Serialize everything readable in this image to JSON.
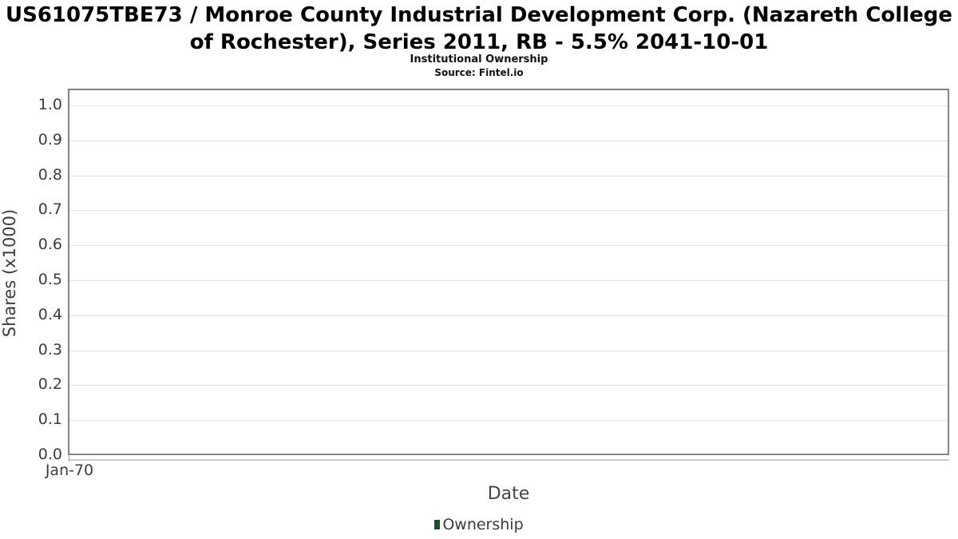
{
  "chart_data": {
    "type": "line",
    "title": "US61075TBE73 / Monroe County Industrial Development Corp. (Nazareth College of Rochester), Series 2011, RB - 5.5% 2041-10-01",
    "subtitle": "Institutional Ownership",
    "source": "Source: Fintel.io",
    "xlabel": "Date",
    "ylabel": "Shares (x1000)",
    "x_tick_labels": [
      "Jan-70"
    ],
    "y_tick_labels": [
      "0.0",
      "0.1",
      "0.2",
      "0.3",
      "0.4",
      "0.5",
      "0.6",
      "0.7",
      "0.8",
      "0.9",
      "1.0"
    ],
    "ylim": [
      0,
      1.05
    ],
    "grid": "horizontal",
    "legend_position": "bottom-center",
    "series": [
      {
        "name": "Ownership",
        "color": "#1e4e2d",
        "points": []
      }
    ],
    "colors": {
      "grid": "#e2e2e2",
      "plot_border": "#848484",
      "axis_line": "#cccccc",
      "tick_text": "#3d3d3d",
      "title_text": "#000000",
      "legend_marker": "#1e4e2d"
    }
  }
}
